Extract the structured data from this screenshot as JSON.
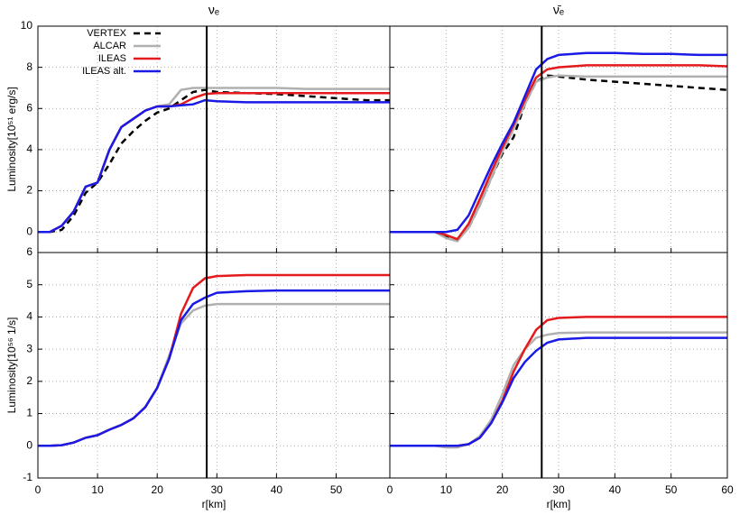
{
  "chart_data": [
    {
      "type": "line",
      "title": "νₑ",
      "ylabel": "Luminosity[10⁵¹ erg/s]",
      "x": [
        0,
        2,
        4,
        6,
        8,
        10,
        12,
        14,
        16,
        18,
        20,
        22,
        24,
        26,
        28,
        30,
        35,
        40,
        45,
        50,
        55,
        59
      ],
      "xlim": [
        0,
        59
      ],
      "xticks": [
        0,
        10,
        20,
        30,
        40,
        50
      ],
      "ylim": [
        -1,
        10
      ],
      "yticks": [
        0,
        2,
        4,
        6,
        8,
        10
      ],
      "show_xtick_labels": false,
      "show_ytick_labels": true,
      "grid": true,
      "legend": "upper left",
      "vline": 28.3,
      "series": [
        {
          "name": "VERTEX",
          "color": "#000000",
          "dashed": true,
          "values": [
            0,
            0,
            0.1,
            0.8,
            1.9,
            2.4,
            3.3,
            4.3,
            4.9,
            5.4,
            5.8,
            6.0,
            6.4,
            6.8,
            6.9,
            6.8,
            6.75,
            6.7,
            6.6,
            6.5,
            6.4,
            6.4
          ]
        },
        {
          "name": "ALCAR",
          "color": "#b0b0b0",
          "values": [
            0,
            0,
            0.3,
            1.0,
            2.2,
            2.4,
            4.0,
            5.1,
            5.5,
            5.9,
            6.1,
            6.2,
            6.9,
            7.0,
            7.0,
            7.0,
            7.0,
            7.0,
            6.95,
            6.95,
            6.95,
            6.95
          ]
        },
        {
          "name": "ILEAS",
          "color": "#e41a1c",
          "values": [
            0,
            0,
            0.3,
            1.0,
            2.2,
            2.4,
            4.0,
            5.1,
            5.5,
            5.9,
            6.1,
            6.1,
            6.2,
            6.5,
            6.7,
            6.75,
            6.75,
            6.75,
            6.75,
            6.75,
            6.75,
            6.75
          ]
        },
        {
          "name": "ILEAS alt.",
          "color": "#1a1ae6",
          "values": [
            0,
            0,
            0.3,
            1.0,
            2.2,
            2.4,
            4.0,
            5.1,
            5.5,
            5.9,
            6.1,
            6.1,
            6.15,
            6.2,
            6.4,
            6.35,
            6.3,
            6.3,
            6.3,
            6.3,
            6.3,
            6.3
          ]
        }
      ]
    },
    {
      "type": "line",
      "title": "ν̄ₑ",
      "x": [
        0,
        2,
        4,
        6,
        8,
        10,
        12,
        14,
        16,
        18,
        20,
        22,
        24,
        26,
        28,
        30,
        35,
        40,
        45,
        50,
        55,
        60
      ],
      "xlim": [
        0,
        60
      ],
      "xticks": [
        0,
        10,
        20,
        30,
        40,
        50,
        60
      ],
      "ylim": [
        -1,
        10
      ],
      "yticks": [
        0,
        2,
        4,
        6,
        8,
        10
      ],
      "show_xtick_labels": false,
      "show_ytick_labels": false,
      "grid": true,
      "vline": 27,
      "series": [
        {
          "name": "VERTEX",
          "color": "#000000",
          "dashed": true,
          "values": [
            0,
            0,
            0,
            0,
            0,
            -0.2,
            -0.4,
            0.2,
            1.3,
            2.6,
            3.8,
            4.6,
            6.2,
            7.3,
            7.6,
            7.55,
            7.4,
            7.3,
            7.2,
            7.1,
            7.0,
            6.9
          ]
        },
        {
          "name": "ALCAR",
          "color": "#b0b0b0",
          "values": [
            0,
            0,
            0,
            0,
            0,
            -0.3,
            -0.45,
            0.2,
            1.3,
            2.6,
            3.9,
            5.0,
            6.2,
            7.3,
            7.5,
            7.6,
            7.55,
            7.55,
            7.55,
            7.55,
            7.55,
            7.55
          ]
        },
        {
          "name": "ILEAS",
          "color": "#e41a1c",
          "values": [
            0,
            0,
            0,
            0,
            0,
            -0.15,
            -0.35,
            0.4,
            1.6,
            2.9,
            4.1,
            5.2,
            6.4,
            7.5,
            7.9,
            8.0,
            8.1,
            8.1,
            8.1,
            8.1,
            8.1,
            8.05
          ]
        },
        {
          "name": "ILEAS alt.",
          "color": "#1a1ae6",
          "values": [
            0,
            0,
            0,
            0,
            0,
            0,
            0.1,
            0.8,
            2.0,
            3.2,
            4.3,
            5.3,
            6.6,
            7.9,
            8.4,
            8.6,
            8.7,
            8.7,
            8.65,
            8.65,
            8.6,
            8.6
          ]
        }
      ]
    },
    {
      "type": "line",
      "xlabel": "r[km]",
      "ylabel": "Luminosity[10⁵⁶ 1/s]",
      "x": [
        0,
        2,
        4,
        6,
        8,
        10,
        12,
        14,
        16,
        18,
        20,
        22,
        24,
        26,
        28,
        30,
        35,
        40,
        45,
        50,
        55,
        59
      ],
      "xlim": [
        0,
        59
      ],
      "xticks": [
        0,
        10,
        20,
        30,
        40,
        50
      ],
      "ylim": [
        -1,
        6
      ],
      "yticks": [
        -1,
        0,
        1,
        2,
        3,
        4,
        5,
        6
      ],
      "show_xtick_labels": true,
      "show_ytick_labels": true,
      "grid": true,
      "vline": 28.3,
      "series": [
        {
          "name": "ALCAR",
          "color": "#b0b0b0",
          "values": [
            0,
            0,
            0.02,
            0.1,
            0.25,
            0.33,
            0.5,
            0.65,
            0.85,
            1.2,
            1.8,
            2.8,
            3.8,
            4.2,
            4.35,
            4.4,
            4.4,
            4.4,
            4.4,
            4.4,
            4.4,
            4.4
          ]
        },
        {
          "name": "ILEAS",
          "color": "#e41a1c",
          "values": [
            0,
            0,
            0.02,
            0.1,
            0.25,
            0.33,
            0.5,
            0.65,
            0.85,
            1.2,
            1.8,
            2.7,
            4.1,
            4.9,
            5.2,
            5.27,
            5.3,
            5.3,
            5.3,
            5.3,
            5.3,
            5.3
          ]
        },
        {
          "name": "ILEAS alt.",
          "color": "#1a1ae6",
          "values": [
            0,
            0,
            0.02,
            0.1,
            0.25,
            0.33,
            0.5,
            0.65,
            0.85,
            1.2,
            1.8,
            2.7,
            3.9,
            4.4,
            4.6,
            4.75,
            4.8,
            4.82,
            4.82,
            4.82,
            4.82,
            4.82
          ]
        }
      ]
    },
    {
      "type": "line",
      "xlabel": "r[km]",
      "x": [
        0,
        2,
        4,
        6,
        8,
        10,
        12,
        14,
        16,
        18,
        20,
        22,
        24,
        26,
        28,
        30,
        35,
        40,
        45,
        50,
        55,
        60
      ],
      "xlim": [
        0,
        60
      ],
      "xticks": [
        0,
        10,
        20,
        30,
        40,
        50,
        60
      ],
      "ylim": [
        -1,
        6
      ],
      "yticks": [
        -1,
        0,
        1,
        2,
        3,
        4,
        5,
        6
      ],
      "show_xtick_labels": true,
      "show_ytick_labels": false,
      "grid": true,
      "vline": 27,
      "series": [
        {
          "name": "ALCAR",
          "color": "#b0b0b0",
          "values": [
            0,
            0,
            0,
            0,
            0,
            -0.05,
            -0.05,
            0.05,
            0.3,
            0.8,
            1.6,
            2.5,
            3.0,
            3.35,
            3.45,
            3.5,
            3.52,
            3.52,
            3.52,
            3.52,
            3.52,
            3.52
          ]
        },
        {
          "name": "ILEAS",
          "color": "#e41a1c",
          "values": [
            0,
            0,
            0,
            0,
            0,
            0,
            0,
            0.05,
            0.25,
            0.7,
            1.4,
            2.3,
            3.0,
            3.6,
            3.9,
            3.97,
            4.0,
            4.0,
            4.0,
            4.0,
            4.0,
            4.0
          ]
        },
        {
          "name": "ILEAS alt.",
          "color": "#1a1ae6",
          "values": [
            0,
            0,
            0,
            0,
            0,
            0,
            0,
            0.05,
            0.25,
            0.7,
            1.35,
            2.1,
            2.6,
            2.95,
            3.2,
            3.3,
            3.35,
            3.35,
            3.35,
            3.35,
            3.35,
            3.35
          ]
        }
      ]
    }
  ]
}
